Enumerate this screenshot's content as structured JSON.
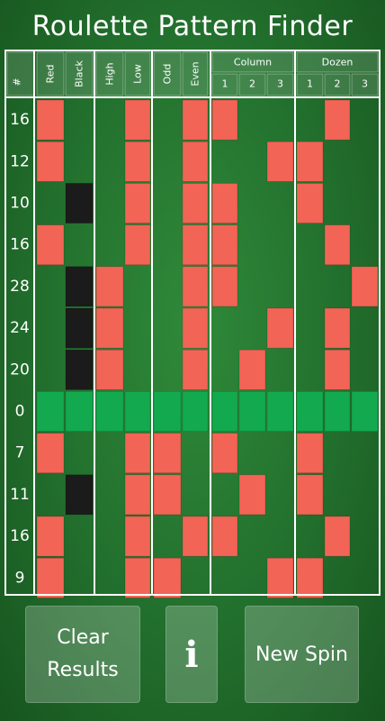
{
  "title": "Roulette Pattern Finder",
  "headers": {
    "number": "#",
    "red": "Red",
    "black": "Black",
    "high": "High",
    "low": "Low",
    "odd": "Odd",
    "even": "Even",
    "column": "Column",
    "dozen": "Dozen",
    "sub": [
      "1",
      "2",
      "3"
    ]
  },
  "colors": {
    "red": "#f26455",
    "black": "#1b1b1b",
    "zero": "#13a94f",
    "grid": "#ffffff"
  },
  "spins": [
    16,
    12,
    10,
    16,
    28,
    24,
    20,
    0,
    7,
    11,
    16,
    9
  ],
  "buttons": {
    "clear": "Clear Results",
    "info": "i",
    "new_spin": "New Spin"
  }
}
